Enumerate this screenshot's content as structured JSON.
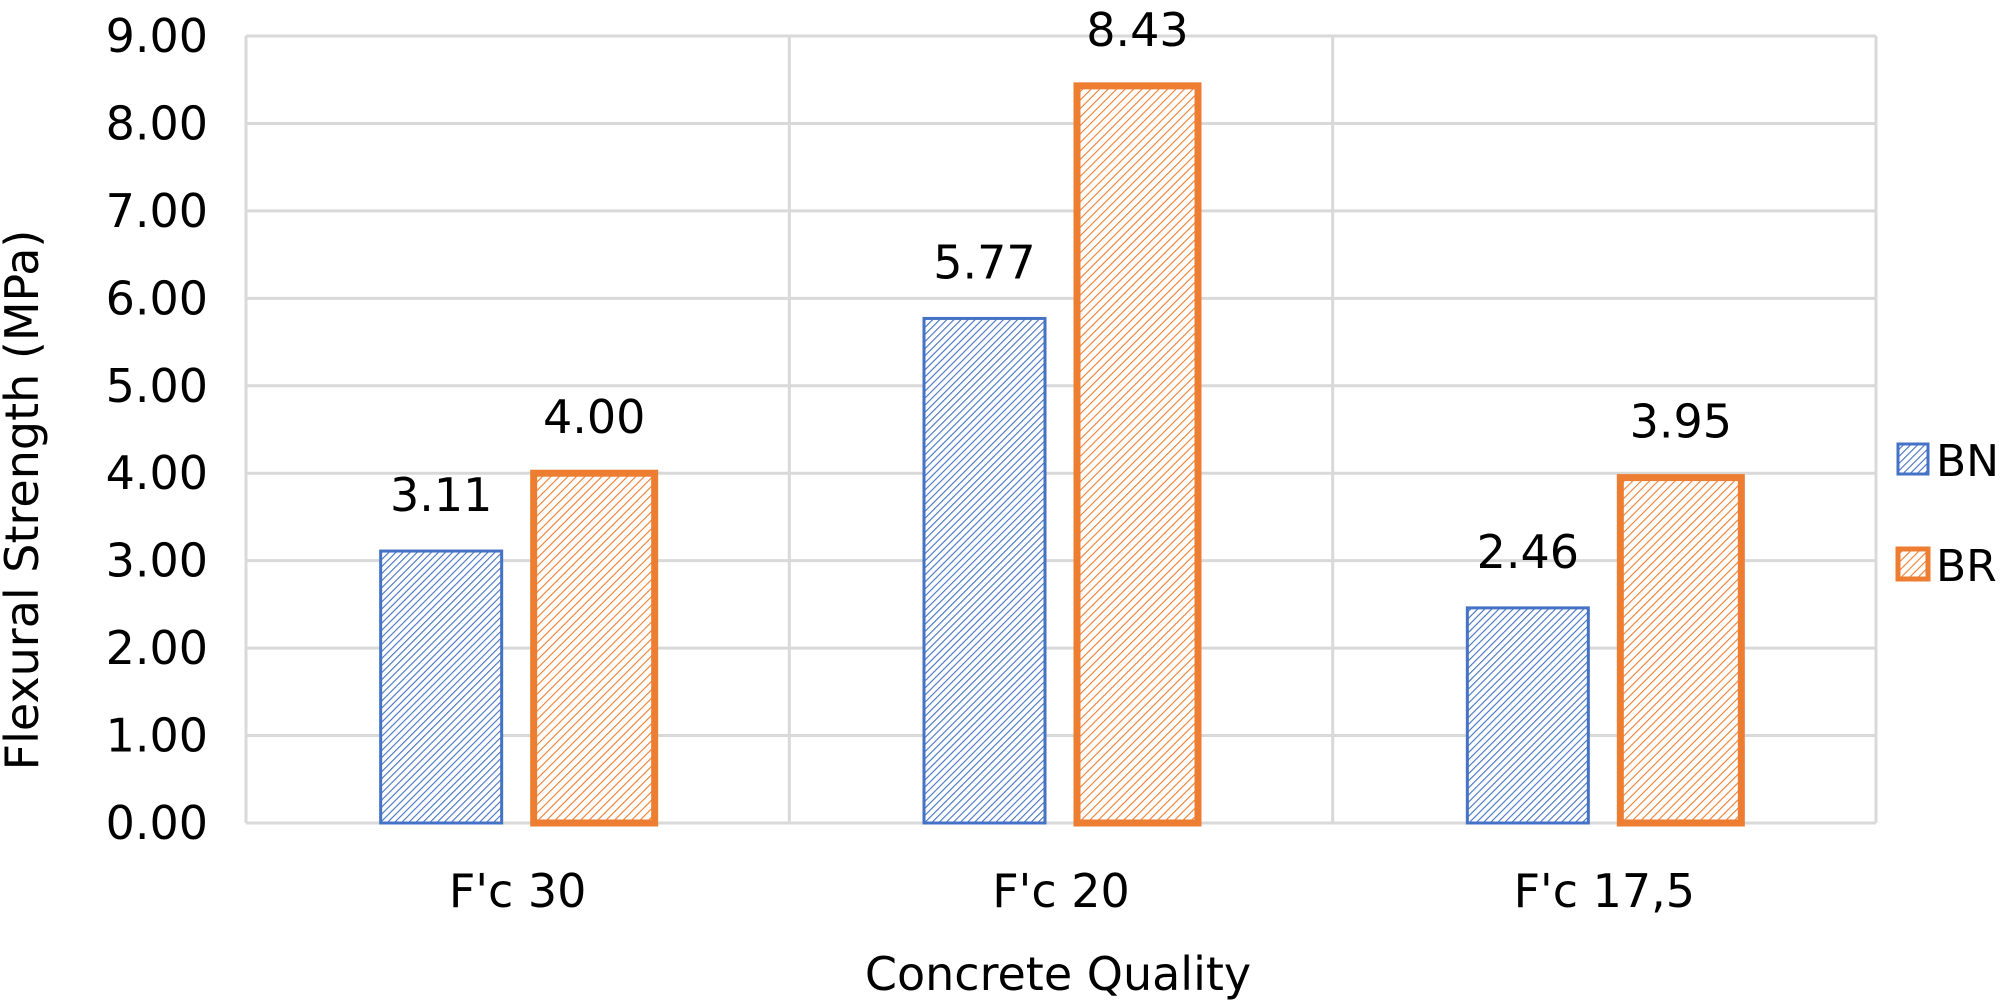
{
  "colors": {
    "BN": "#4472C4",
    "BR": "#ED7D31",
    "grid": "#D9D9D9",
    "text": "#000000"
  },
  "chart_data": {
    "type": "bar",
    "title": "",
    "xlabel": "Concrete Quality",
    "ylabel": "Flexural Strength (MPa)",
    "ylim": [
      0,
      9
    ],
    "y_ticks": [
      "0.00",
      "1.00",
      "2.00",
      "3.00",
      "4.00",
      "5.00",
      "6.00",
      "7.00",
      "8.00",
      "9.00"
    ],
    "categories": [
      "F'c 30",
      "F'c 20",
      "F'c 17,5"
    ],
    "series": [
      {
        "name": "BN",
        "values": [
          3.11,
          5.77,
          2.46
        ],
        "labels": [
          "3.11",
          "5.77",
          "2.46"
        ],
        "pattern": "dense diagonal hatch"
      },
      {
        "name": "BR",
        "values": [
          4.0,
          8.43,
          3.95
        ],
        "labels": [
          "4.00",
          "8.43",
          "3.95"
        ],
        "pattern": "diagonal hatch"
      }
    ],
    "grid": true,
    "legend_position": "right"
  }
}
